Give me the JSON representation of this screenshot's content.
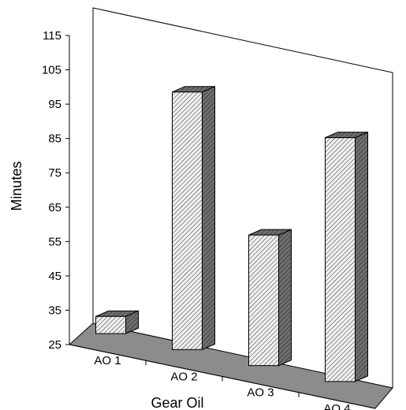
{
  "chart_data": {
    "type": "bar",
    "title": "",
    "xlabel": "Gear Oil",
    "ylabel": "Minutes",
    "categories": [
      "AO 1",
      "AO 2",
      "AO 3",
      "AO 4"
    ],
    "values": [
      30,
      100,
      63,
      96
    ],
    "ylim": [
      25,
      115
    ],
    "yticks": [
      25,
      35,
      45,
      55,
      65,
      75,
      85,
      95,
      105,
      115
    ],
    "grid": false,
    "legend": "none",
    "style": "3d-hatched",
    "colors": {
      "bar_face": "#f0f0f0",
      "bar_side": "#6e6e6e",
      "floor": "#8c8c8c",
      "hatch": "#1a1a1a"
    }
  }
}
